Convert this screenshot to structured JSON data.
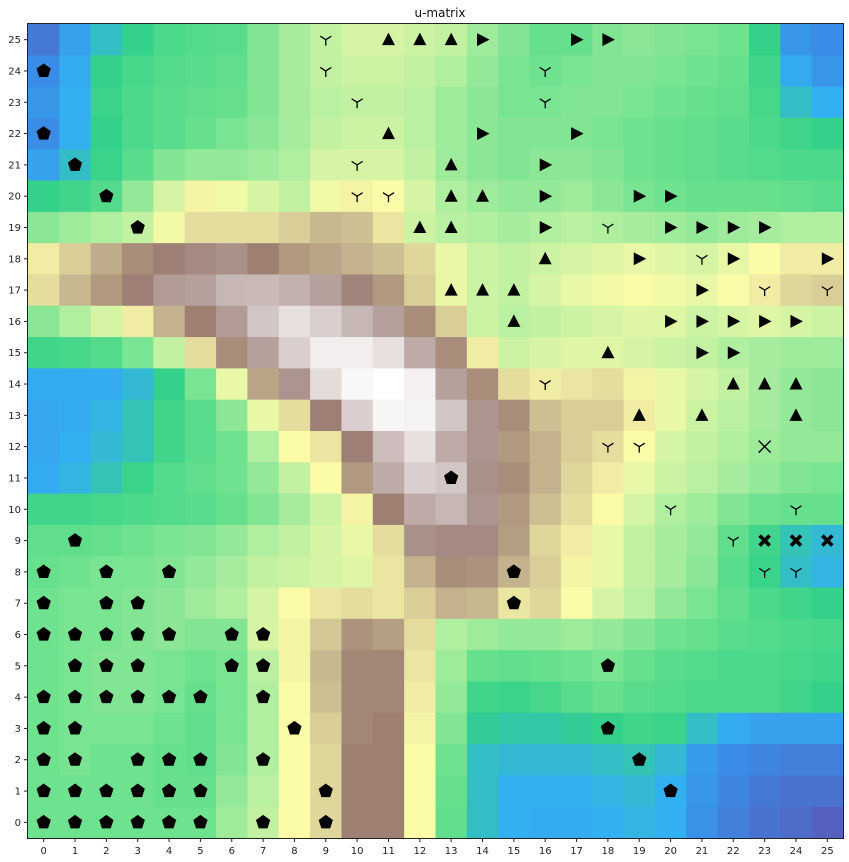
{
  "chart_data": {
    "type": "heatmap",
    "title": "u-matrix",
    "xlabel": "",
    "ylabel": "",
    "xlim": [
      0,
      25
    ],
    "ylim": [
      0,
      25
    ],
    "x_ticks": [
      "0",
      "1",
      "2",
      "3",
      "4",
      "5",
      "6",
      "7",
      "8",
      "9",
      "10",
      "11",
      "12",
      "13",
      "14",
      "15",
      "16",
      "17",
      "18",
      "19",
      "20",
      "21",
      "22",
      "23",
      "24",
      "25"
    ],
    "y_ticks": [
      "0",
      "1",
      "2",
      "3",
      "4",
      "5",
      "6",
      "7",
      "8",
      "9",
      "10",
      "11",
      "12",
      "13",
      "14",
      "15",
      "16",
      "17",
      "18",
      "19",
      "20",
      "21",
      "22",
      "23",
      "24",
      "25"
    ],
    "colormap": "terrain",
    "value_scale": "relative distance 0 (blue) to 1 (white)",
    "grid": "off",
    "legend": "none",
    "rows_top_to_bottom": [
      [
        0.05,
        0.12,
        0.18,
        0.22,
        0.26,
        0.27,
        0.28,
        0.33,
        0.37,
        0.4,
        0.42,
        0.42,
        0.41,
        0.4,
        0.36,
        0.33,
        0.3,
        0.3,
        0.33,
        0.34,
        0.33,
        0.32,
        0.31,
        0.22,
        0.1,
        0.08
      ],
      [
        0.08,
        0.14,
        0.22,
        0.25,
        0.27,
        0.28,
        0.29,
        0.33,
        0.37,
        0.4,
        0.41,
        0.41,
        0.4,
        0.38,
        0.35,
        0.32,
        0.31,
        0.32,
        0.33,
        0.33,
        0.32,
        0.31,
        0.3,
        0.24,
        0.14,
        0.1
      ],
      [
        0.1,
        0.15,
        0.23,
        0.26,
        0.28,
        0.29,
        0.3,
        0.33,
        0.37,
        0.39,
        0.4,
        0.4,
        0.39,
        0.36,
        0.34,
        0.32,
        0.32,
        0.33,
        0.33,
        0.32,
        0.31,
        0.3,
        0.29,
        0.25,
        0.18,
        0.15
      ],
      [
        0.08,
        0.15,
        0.22,
        0.26,
        0.28,
        0.3,
        0.32,
        0.34,
        0.37,
        0.4,
        0.41,
        0.41,
        0.39,
        0.36,
        0.34,
        0.33,
        0.33,
        0.33,
        0.32,
        0.31,
        0.3,
        0.29,
        0.28,
        0.26,
        0.24,
        0.22
      ],
      [
        0.12,
        0.18,
        0.23,
        0.28,
        0.33,
        0.35,
        0.35,
        0.36,
        0.38,
        0.42,
        0.42,
        0.42,
        0.4,
        0.36,
        0.34,
        0.33,
        0.34,
        0.34,
        0.33,
        0.31,
        0.3,
        0.29,
        0.28,
        0.27,
        0.26,
        0.26
      ],
      [
        0.22,
        0.24,
        0.27,
        0.35,
        0.42,
        0.47,
        0.45,
        0.42,
        0.4,
        0.45,
        0.47,
        0.46,
        0.42,
        0.38,
        0.36,
        0.35,
        0.35,
        0.36,
        0.34,
        0.32,
        0.31,
        0.3,
        0.3,
        0.3,
        0.29,
        0.28
      ],
      [
        0.34,
        0.36,
        0.38,
        0.4,
        0.45,
        0.5,
        0.5,
        0.5,
        0.52,
        0.55,
        0.54,
        0.49,
        0.41,
        0.39,
        0.38,
        0.37,
        0.38,
        0.39,
        0.38,
        0.37,
        0.36,
        0.35,
        0.36,
        0.37,
        0.38,
        0.38
      ],
      [
        0.48,
        0.52,
        0.57,
        0.62,
        0.66,
        0.68,
        0.69,
        0.64,
        0.6,
        0.58,
        0.56,
        0.54,
        0.51,
        0.44,
        0.41,
        0.4,
        0.41,
        0.42,
        0.43,
        0.44,
        0.43,
        0.42,
        0.44,
        0.46,
        0.48,
        0.48
      ],
      [
        0.5,
        0.55,
        0.6,
        0.66,
        0.71,
        0.72,
        0.76,
        0.77,
        0.75,
        0.72,
        0.67,
        0.6,
        0.52,
        0.44,
        0.41,
        0.4,
        0.42,
        0.44,
        0.45,
        0.46,
        0.45,
        0.44,
        0.46,
        0.48,
        0.51,
        0.52
      ],
      [
        0.34,
        0.38,
        0.42,
        0.48,
        0.56,
        0.64,
        0.71,
        0.8,
        0.86,
        0.82,
        0.76,
        0.72,
        0.62,
        0.52,
        0.41,
        0.39,
        0.4,
        0.41,
        0.42,
        0.43,
        0.43,
        0.41,
        0.42,
        0.43,
        0.42,
        0.41
      ],
      [
        0.24,
        0.25,
        0.27,
        0.32,
        0.4,
        0.5,
        0.62,
        0.72,
        0.82,
        0.91,
        0.91,
        0.86,
        0.74,
        0.62,
        0.48,
        0.41,
        0.42,
        0.43,
        0.43,
        0.42,
        0.41,
        0.4,
        0.38,
        0.37,
        0.36,
        0.36
      ],
      [
        0.14,
        0.14,
        0.14,
        0.17,
        0.22,
        0.32,
        0.44,
        0.58,
        0.7,
        0.85,
        0.96,
        1.0,
        0.92,
        0.72,
        0.62,
        0.5,
        0.48,
        0.49,
        0.5,
        0.47,
        0.44,
        0.42,
        0.4,
        0.37,
        0.35,
        0.34
      ],
      [
        0.13,
        0.14,
        0.16,
        0.19,
        0.24,
        0.28,
        0.34,
        0.44,
        0.5,
        0.66,
        0.82,
        0.95,
        0.93,
        0.8,
        0.7,
        0.62,
        0.54,
        0.52,
        0.52,
        0.48,
        0.44,
        0.41,
        0.39,
        0.37,
        0.35,
        0.34
      ],
      [
        0.13,
        0.15,
        0.17,
        0.19,
        0.24,
        0.28,
        0.31,
        0.38,
        0.46,
        0.49,
        0.66,
        0.78,
        0.86,
        0.74,
        0.7,
        0.6,
        0.56,
        0.52,
        0.5,
        0.46,
        0.42,
        0.4,
        0.38,
        0.36,
        0.35,
        0.35
      ],
      [
        0.14,
        0.16,
        0.19,
        0.23,
        0.27,
        0.29,
        0.31,
        0.35,
        0.4,
        0.46,
        0.6,
        0.74,
        0.82,
        0.8,
        0.69,
        0.62,
        0.56,
        0.51,
        0.48,
        0.44,
        0.41,
        0.39,
        0.37,
        0.35,
        0.33,
        0.32
      ],
      [
        0.24,
        0.24,
        0.25,
        0.26,
        0.27,
        0.28,
        0.3,
        0.33,
        0.37,
        0.41,
        0.47,
        0.64,
        0.74,
        0.76,
        0.7,
        0.6,
        0.54,
        0.5,
        0.46,
        0.42,
        0.38,
        0.36,
        0.33,
        0.31,
        0.3,
        0.3
      ],
      [
        0.29,
        0.29,
        0.3,
        0.31,
        0.32,
        0.33,
        0.35,
        0.38,
        0.4,
        0.42,
        0.44,
        0.5,
        0.69,
        0.68,
        0.68,
        0.59,
        0.51,
        0.48,
        0.44,
        0.4,
        0.37,
        0.35,
        0.29,
        0.24,
        0.19,
        0.17
      ],
      [
        0.3,
        0.31,
        0.32,
        0.32,
        0.33,
        0.35,
        0.37,
        0.4,
        0.41,
        0.42,
        0.43,
        0.49,
        0.56,
        0.62,
        0.61,
        0.56,
        0.52,
        0.47,
        0.44,
        0.4,
        0.37,
        0.34,
        0.28,
        0.23,
        0.18,
        0.16
      ],
      [
        0.31,
        0.32,
        0.32,
        0.33,
        0.34,
        0.36,
        0.38,
        0.42,
        0.46,
        0.49,
        0.5,
        0.49,
        0.52,
        0.56,
        0.55,
        0.49,
        0.51,
        0.46,
        0.42,
        0.39,
        0.35,
        0.32,
        0.29,
        0.26,
        0.24,
        0.22
      ],
      [
        0.31,
        0.32,
        0.32,
        0.33,
        0.34,
        0.33,
        0.33,
        0.42,
        0.47,
        0.53,
        0.61,
        0.59,
        0.5,
        0.38,
        0.36,
        0.35,
        0.35,
        0.36,
        0.35,
        0.33,
        0.31,
        0.3,
        0.28,
        0.27,
        0.26,
        0.25
      ],
      [
        0.31,
        0.32,
        0.33,
        0.33,
        0.32,
        0.31,
        0.32,
        0.39,
        0.47,
        0.55,
        0.63,
        0.63,
        0.49,
        0.36,
        0.3,
        0.29,
        0.3,
        0.31,
        0.32,
        0.3,
        0.28,
        0.27,
        0.26,
        0.26,
        0.25,
        0.24
      ],
      [
        0.31,
        0.32,
        0.33,
        0.33,
        0.32,
        0.3,
        0.32,
        0.38,
        0.46,
        0.54,
        0.63,
        0.63,
        0.48,
        0.35,
        0.24,
        0.23,
        0.25,
        0.28,
        0.3,
        0.28,
        0.27,
        0.26,
        0.26,
        0.26,
        0.24,
        0.22
      ],
      [
        0.31,
        0.32,
        0.32,
        0.32,
        0.31,
        0.29,
        0.32,
        0.38,
        0.46,
        0.52,
        0.63,
        0.64,
        0.47,
        0.33,
        0.21,
        0.2,
        0.2,
        0.21,
        0.22,
        0.24,
        0.23,
        0.18,
        0.14,
        0.12,
        0.12,
        0.12
      ],
      [
        0.31,
        0.32,
        0.31,
        0.31,
        0.3,
        0.29,
        0.33,
        0.38,
        0.46,
        0.51,
        0.64,
        0.64,
        0.46,
        0.31,
        0.18,
        0.17,
        0.17,
        0.17,
        0.18,
        0.19,
        0.17,
        0.11,
        0.08,
        0.07,
        0.06,
        0.06
      ],
      [
        0.31,
        0.31,
        0.31,
        0.31,
        0.3,
        0.3,
        0.35,
        0.39,
        0.46,
        0.51,
        0.64,
        0.64,
        0.46,
        0.3,
        0.18,
        0.15,
        0.15,
        0.15,
        0.16,
        0.17,
        0.15,
        0.1,
        0.07,
        0.05,
        0.04,
        0.04
      ],
      [
        0.31,
        0.31,
        0.31,
        0.31,
        0.31,
        0.31,
        0.36,
        0.4,
        0.46,
        0.51,
        0.64,
        0.64,
        0.46,
        0.29,
        0.18,
        0.15,
        0.14,
        0.14,
        0.15,
        0.16,
        0.15,
        0.09,
        0.06,
        0.04,
        0.03,
        0.01
      ]
    ],
    "markers": [
      {
        "shape": "tri_down",
        "cells": [
          [
            9,
            25
          ],
          [
            9,
            24
          ],
          [
            16,
            24
          ],
          [
            10,
            23
          ],
          [
            16,
            23
          ],
          [
            10,
            21
          ],
          [
            10,
            20
          ],
          [
            11,
            20
          ],
          [
            18,
            19
          ],
          [
            21,
            18
          ],
          [
            23,
            17
          ],
          [
            25,
            17
          ],
          [
            16,
            14
          ],
          [
            18,
            12
          ],
          [
            19,
            12
          ],
          [
            20,
            10
          ],
          [
            24,
            10
          ],
          [
            22,
            9
          ],
          [
            23,
            8
          ],
          [
            24,
            8
          ]
        ]
      },
      {
        "shape": "triangle_up",
        "cells": [
          [
            11,
            25
          ],
          [
            12,
            25
          ],
          [
            13,
            25
          ],
          [
            11,
            22
          ],
          [
            13,
            21
          ],
          [
            13,
            20
          ],
          [
            14,
            20
          ],
          [
            12,
            19
          ],
          [
            13,
            19
          ],
          [
            16,
            18
          ],
          [
            13,
            17
          ],
          [
            14,
            17
          ],
          [
            15,
            17
          ],
          [
            15,
            16
          ],
          [
            18,
            15
          ],
          [
            22,
            14
          ],
          [
            23,
            14
          ],
          [
            24,
            14
          ],
          [
            19,
            13
          ],
          [
            21,
            13
          ],
          [
            24,
            13
          ]
        ]
      },
      {
        "shape": "triangle_right",
        "cells": [
          [
            14,
            25
          ],
          [
            17,
            25
          ],
          [
            18,
            25
          ],
          [
            14,
            22
          ],
          [
            17,
            22
          ],
          [
            16,
            21
          ],
          [
            16,
            20
          ],
          [
            19,
            20
          ],
          [
            20,
            20
          ],
          [
            16,
            19
          ],
          [
            20,
            19
          ],
          [
            21,
            19
          ],
          [
            22,
            19
          ],
          [
            23,
            19
          ],
          [
            19,
            18
          ],
          [
            22,
            18
          ],
          [
            25,
            18
          ],
          [
            21,
            17
          ],
          [
            20,
            16
          ],
          [
            21,
            16
          ],
          [
            22,
            16
          ],
          [
            23,
            16
          ],
          [
            24,
            16
          ],
          [
            21,
            15
          ],
          [
            22,
            15
          ]
        ]
      },
      {
        "shape": "pentagon",
        "cells": [
          [
            0,
            24
          ],
          [
            0,
            22
          ],
          [
            1,
            21
          ],
          [
            2,
            20
          ],
          [
            3,
            19
          ],
          [
            13,
            11
          ],
          [
            1,
            9
          ],
          [
            0,
            8
          ],
          [
            2,
            8
          ],
          [
            4,
            8
          ],
          [
            15,
            8
          ],
          [
            0,
            7
          ],
          [
            2,
            7
          ],
          [
            3,
            7
          ],
          [
            15,
            7
          ],
          [
            0,
            6
          ],
          [
            1,
            6
          ],
          [
            2,
            6
          ],
          [
            3,
            6
          ],
          [
            4,
            6
          ],
          [
            6,
            6
          ],
          [
            7,
            6
          ],
          [
            1,
            5
          ],
          [
            2,
            5
          ],
          [
            3,
            5
          ],
          [
            6,
            5
          ],
          [
            7,
            5
          ],
          [
            18,
            5
          ],
          [
            0,
            4
          ],
          [
            1,
            4
          ],
          [
            2,
            4
          ],
          [
            3,
            4
          ],
          [
            4,
            4
          ],
          [
            5,
            4
          ],
          [
            7,
            4
          ],
          [
            0,
            3
          ],
          [
            1,
            3
          ],
          [
            8,
            3
          ],
          [
            18,
            3
          ],
          [
            0,
            2
          ],
          [
            1,
            2
          ],
          [
            3,
            2
          ],
          [
            4,
            2
          ],
          [
            5,
            2
          ],
          [
            7,
            2
          ],
          [
            19,
            2
          ],
          [
            0,
            1
          ],
          [
            1,
            1
          ],
          [
            2,
            1
          ],
          [
            3,
            1
          ],
          [
            4,
            1
          ],
          [
            5,
            1
          ],
          [
            9,
            1
          ],
          [
            20,
            1
          ],
          [
            0,
            0
          ],
          [
            1,
            0
          ],
          [
            2,
            0
          ],
          [
            3,
            0
          ],
          [
            4,
            0
          ],
          [
            5,
            0
          ],
          [
            7,
            0
          ],
          [
            9,
            0
          ]
        ]
      },
      {
        "shape": "x_thick",
        "cells": [
          [
            23,
            9
          ],
          [
            24,
            9
          ],
          [
            25,
            9
          ]
        ]
      },
      {
        "shape": "x_thin",
        "cells": [
          [
            23,
            12
          ]
        ]
      }
    ]
  }
}
